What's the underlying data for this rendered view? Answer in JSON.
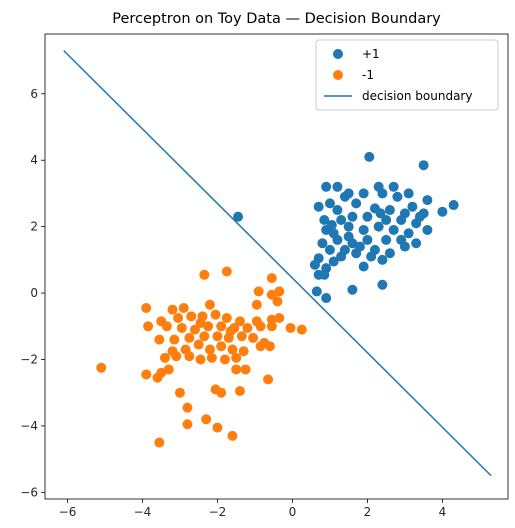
{
  "chart_data": {
    "type": "scatter",
    "title": "Perceptron on Toy Data — Decision Boundary",
    "xlabel": "",
    "ylabel": "",
    "xlim": [
      -6.6,
      5.75
    ],
    "ylim": [
      -6.2,
      7.8
    ],
    "xticks": [
      -6,
      -4,
      -2,
      0,
      2,
      4
    ],
    "yticks": [
      -6,
      -4,
      -2,
      0,
      2,
      4,
      6
    ],
    "grid": false,
    "legend_position": "top-right",
    "series": [
      {
        "name": "+1",
        "color": "#1f77b4",
        "marker": "circle",
        "points": [
          [
            -1.45,
            2.3
          ],
          [
            2.05,
            4.1
          ],
          [
            3.5,
            3.85
          ],
          [
            1.2,
            3.2
          ],
          [
            1.5,
            3.0
          ],
          [
            2.3,
            3.2
          ],
          [
            2.7,
            3.2
          ],
          [
            3.1,
            3.0
          ],
          [
            3.6,
            2.8
          ],
          [
            4.3,
            2.65
          ],
          [
            4.0,
            2.45
          ],
          [
            3.5,
            2.4
          ],
          [
            0.9,
            3.2
          ],
          [
            1.0,
            2.7
          ],
          [
            1.4,
            2.9
          ],
          [
            1.9,
            3.0
          ],
          [
            2.4,
            3.0
          ],
          [
            2.8,
            2.9
          ],
          [
            3.2,
            2.6
          ],
          [
            0.7,
            2.6
          ],
          [
            1.2,
            2.5
          ],
          [
            1.7,
            2.7
          ],
          [
            2.2,
            2.55
          ],
          [
            2.6,
            2.5
          ],
          [
            3.0,
            2.4
          ],
          [
            3.4,
            2.3
          ],
          [
            0.85,
            2.2
          ],
          [
            1.3,
            2.2
          ],
          [
            1.6,
            2.3
          ],
          [
            2.0,
            2.3
          ],
          [
            2.5,
            2.2
          ],
          [
            2.9,
            2.2
          ],
          [
            3.3,
            2.1
          ],
          [
            0.9,
            1.9
          ],
          [
            1.1,
            1.8
          ],
          [
            1.5,
            2.0
          ],
          [
            1.9,
            1.9
          ],
          [
            2.3,
            2.0
          ],
          [
            2.7,
            1.9
          ],
          [
            3.1,
            1.8
          ],
          [
            3.6,
            1.9
          ],
          [
            0.8,
            1.5
          ],
          [
            1.2,
            1.6
          ],
          [
            1.6,
            1.5
          ],
          [
            2.0,
            1.6
          ],
          [
            2.5,
            1.6
          ],
          [
            2.9,
            1.6
          ],
          [
            3.3,
            1.5
          ],
          [
            1.0,
            1.3
          ],
          [
            1.4,
            1.3
          ],
          [
            1.8,
            1.4
          ],
          [
            2.2,
            1.3
          ],
          [
            2.6,
            1.2
          ],
          [
            3.0,
            1.4
          ],
          [
            1.3,
            1.1
          ],
          [
            1.7,
            1.2
          ],
          [
            2.1,
            1.1
          ],
          [
            2.4,
            1.0
          ],
          [
            0.7,
            1.05
          ],
          [
            1.1,
            0.95
          ],
          [
            1.9,
            0.8
          ],
          [
            0.9,
            0.75
          ],
          [
            0.85,
            0.55
          ],
          [
            0.7,
            0.55
          ],
          [
            0.6,
            0.85
          ],
          [
            1.6,
            0.1
          ],
          [
            0.65,
            0.05
          ],
          [
            0.9,
            -0.15
          ],
          [
            2.4,
            0.25
          ],
          [
            1.5,
            1.7
          ],
          [
            2.35,
            2.4
          ],
          [
            1.05,
            2.05
          ]
        ]
      },
      {
        "name": "-1",
        "color": "#ff7f0e",
        "marker": "circle",
        "points": [
          [
            -5.1,
            -2.25
          ],
          [
            -3.55,
            -4.5
          ],
          [
            -1.6,
            -4.3
          ],
          [
            -2.0,
            -4.05
          ],
          [
            -2.8,
            -3.95
          ],
          [
            -2.3,
            -3.8
          ],
          [
            -2.8,
            -3.45
          ],
          [
            -3.0,
            -3.0
          ],
          [
            -1.9,
            -3.0
          ],
          [
            -2.05,
            -2.9
          ],
          [
            -1.4,
            -2.95
          ],
          [
            -0.65,
            -2.6
          ],
          [
            -3.9,
            -2.45
          ],
          [
            -3.6,
            -2.55
          ],
          [
            -3.5,
            -2.4
          ],
          [
            -3.3,
            -2.3
          ],
          [
            -1.5,
            -2.3
          ],
          [
            -1.25,
            -2.3
          ],
          [
            -3.4,
            -1.95
          ],
          [
            -3.1,
            -1.9
          ],
          [
            -2.75,
            -1.9
          ],
          [
            -2.45,
            -2.0
          ],
          [
            -2.15,
            -1.95
          ],
          [
            -1.8,
            -2.0
          ],
          [
            -1.5,
            -1.95
          ],
          [
            -3.2,
            -1.75
          ],
          [
            -2.85,
            -1.7
          ],
          [
            -2.5,
            -1.55
          ],
          [
            -2.2,
            -1.7
          ],
          [
            -1.9,
            -1.6
          ],
          [
            -1.6,
            -1.7
          ],
          [
            -1.3,
            -1.75
          ],
          [
            -0.85,
            -1.6
          ],
          [
            -0.6,
            -1.6
          ],
          [
            -3.55,
            -1.4
          ],
          [
            -3.15,
            -1.4
          ],
          [
            -2.75,
            -1.35
          ],
          [
            -2.35,
            -1.3
          ],
          [
            -2.0,
            -1.3
          ],
          [
            -1.7,
            -1.35
          ],
          [
            -1.35,
            -1.3
          ],
          [
            -1.05,
            -1.35
          ],
          [
            -0.75,
            -1.5
          ],
          [
            -3.85,
            -1.0
          ],
          [
            -3.35,
            -1.0
          ],
          [
            -2.95,
            -1.05
          ],
          [
            -2.6,
            -1.1
          ],
          [
            -2.25,
            -1.0
          ],
          [
            -1.9,
            -1.0
          ],
          [
            -1.55,
            -1.05
          ],
          [
            -1.2,
            -1.05
          ],
          [
            -0.85,
            -1.0
          ],
          [
            -0.55,
            -1.0
          ],
          [
            -0.05,
            -1.05
          ],
          [
            0.25,
            -1.1
          ],
          [
            -3.5,
            -0.85
          ],
          [
            -3.05,
            -0.75
          ],
          [
            -2.7,
            -0.7
          ],
          [
            -2.4,
            -0.7
          ],
          [
            -2.05,
            -0.65
          ],
          [
            -1.75,
            -0.75
          ],
          [
            -1.4,
            -0.85
          ],
          [
            -0.95,
            -0.85
          ],
          [
            -0.55,
            -0.8
          ],
          [
            -0.35,
            -0.75
          ],
          [
            -3.2,
            -0.5
          ],
          [
            -2.9,
            -0.45
          ],
          [
            -3.9,
            -0.45
          ],
          [
            -2.2,
            -0.35
          ],
          [
            -0.95,
            -0.35
          ],
          [
            -0.4,
            -0.25
          ],
          [
            -0.55,
            -0.05
          ],
          [
            -0.35,
            0.05
          ],
          [
            -0.9,
            0.05
          ],
          [
            -0.55,
            0.45
          ],
          [
            -1.75,
            0.65
          ],
          [
            -2.35,
            0.55
          ],
          [
            -2.45,
            -0.9
          ],
          [
            -1.65,
            -1.15
          ]
        ]
      },
      {
        "name": "decision boundary",
        "color": "#1f77b4",
        "marker": "line",
        "points": [
          [
            -6.1,
            7.3
          ],
          [
            5.3,
            -5.5
          ]
        ]
      }
    ]
  }
}
